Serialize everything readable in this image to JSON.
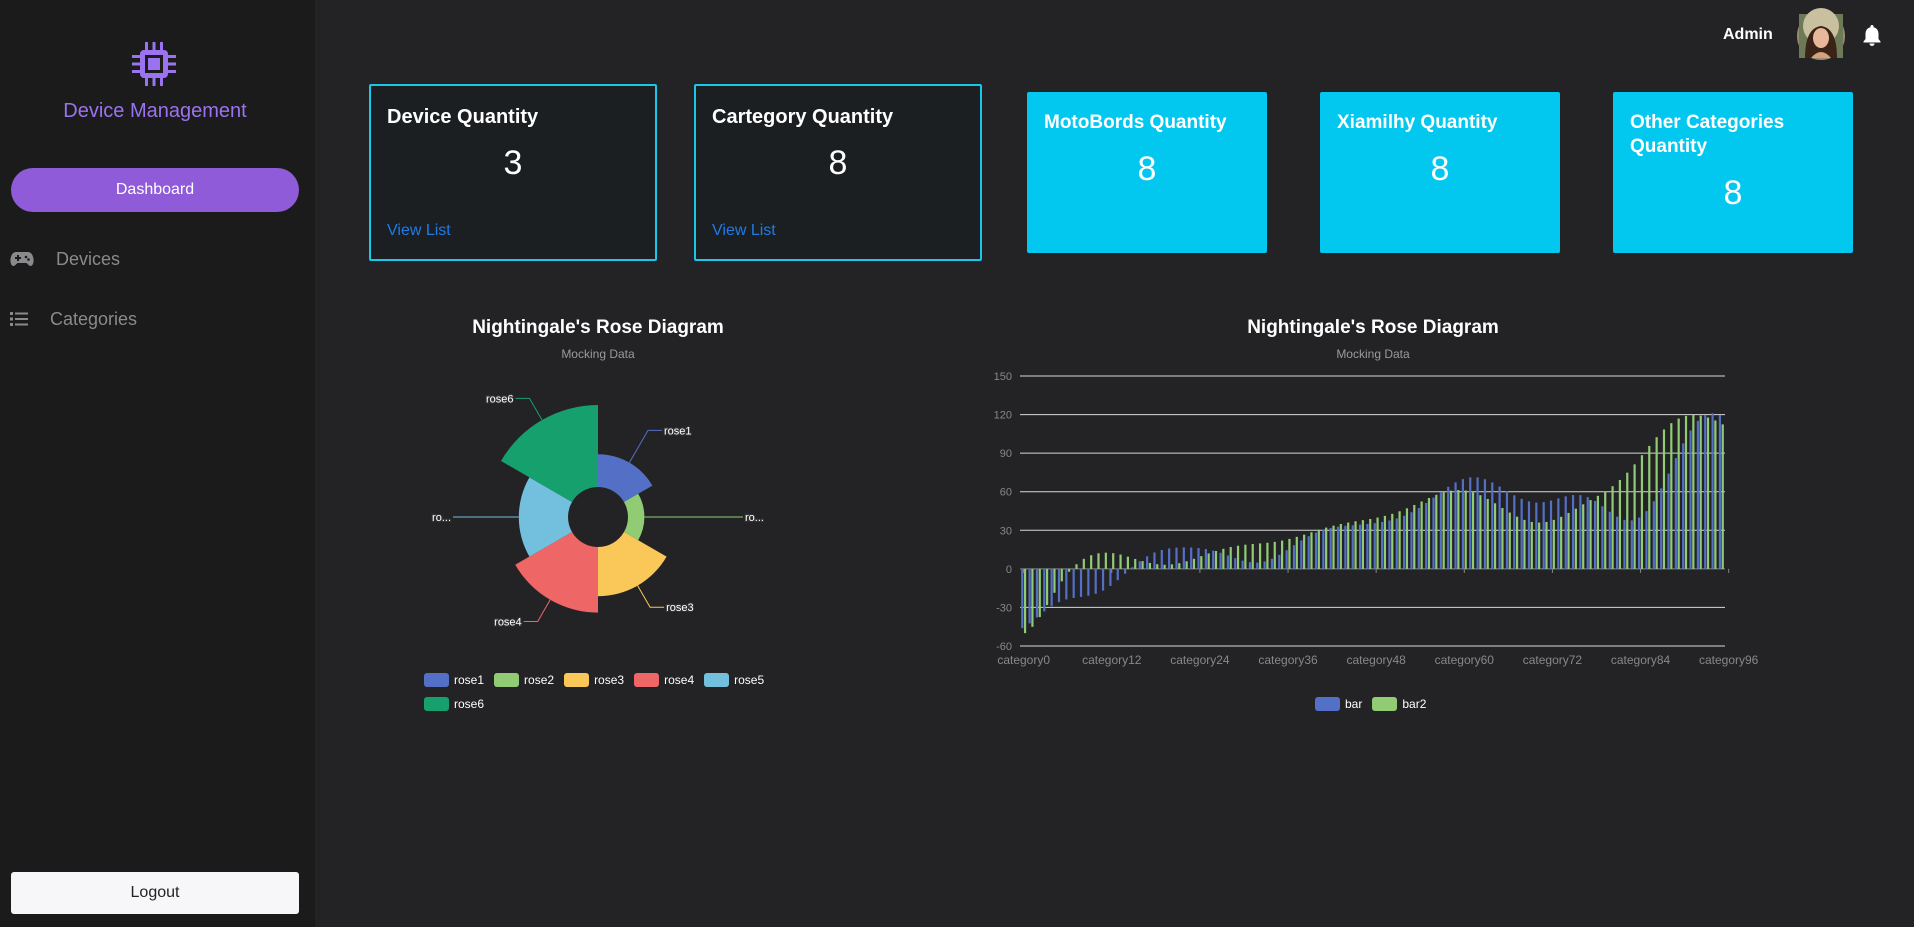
{
  "sidebar": {
    "brand_title": "Device Management",
    "brand_icon": "cpu-chip-icon",
    "dashboard_label": "Dashboard",
    "items": [
      {
        "label": "Devices",
        "icon": "gamepad-icon"
      },
      {
        "label": "Categories",
        "icon": "list-icon"
      }
    ],
    "logout_label": "Logout"
  },
  "topbar": {
    "user_name": "Admin",
    "bell_icon": "bell-icon"
  },
  "cards": [
    {
      "title": "Device Quantity",
      "value": "3",
      "link": "View List"
    },
    {
      "title": "Cartegory Quantity",
      "value": "8",
      "link": "View List"
    },
    {
      "title": "MotoBords Quantity",
      "value": "8"
    },
    {
      "title": "Xiamilhy Quantity",
      "value": "8"
    },
    {
      "title": "Other Categories Quantity",
      "value": "8"
    }
  ],
  "colors": {
    "accent": "#8f5bd9",
    "brand_text": "#9b73f0",
    "card_border": "#18c7ea",
    "card_solid": "#02c8ef",
    "link": "#1e7be8"
  },
  "chart_data": [
    {
      "type": "pie",
      "subtype": "rose",
      "title": "Nightingale's Rose Diagram",
      "subtitle": "Mocking Data",
      "categories": [
        "rose1",
        "rose2",
        "rose3",
        "rose4",
        "rose5",
        "rose6"
      ],
      "slice_labels": [
        "rose1",
        "ro...",
        "rose3",
        "rose4",
        "ro...",
        "rose6"
      ],
      "values": [
        20,
        10,
        30,
        40,
        30,
        50
      ],
      "colors": [
        "#5470c6",
        "#91cc75",
        "#fac858",
        "#ee6666",
        "#73c0de",
        "#15a06e"
      ],
      "legend_position": "bottom"
    },
    {
      "type": "bar",
      "title": "Nightingale's Rose Diagram",
      "subtitle": "Mocking Data",
      "x_tick_labels": [
        "category0",
        "category12",
        "category24",
        "category36",
        "category48",
        "category60",
        "category72",
        "category84",
        "category96"
      ],
      "ylim": [
        -60,
        150
      ],
      "y_ticks": [
        -60,
        -30,
        0,
        30,
        60,
        90,
        120,
        150
      ],
      "grid": true,
      "legend_position": "bottom",
      "series": [
        {
          "name": "bar",
          "color": "#5470c6",
          "values": [
            -46.1,
            -42.4,
            -37.8,
            -33.1,
            -29.0,
            -25.9,
            -23.8,
            -22.6,
            -21.8,
            -20.9,
            -19.4,
            -16.9,
            -13.3,
            -8.8,
            -3.8,
            1.3,
            5.9,
            9.8,
            12.7,
            14.7,
            15.9,
            16.5,
            16.7,
            16.6,
            16.2,
            15.4,
            14.2,
            12.5,
            10.4,
            8.3,
            6.4,
            5.2,
            4.9,
            5.8,
            7.8,
            10.9,
            14.5,
            18.4,
            22.1,
            25.4,
            28.2,
            30.3,
            31.8,
            32.8,
            33.5,
            33.9,
            34.4,
            34.9,
            35.6,
            36.5,
            37.6,
            39.2,
            41.3,
            44.0,
            47.3,
            51.2,
            55.4,
            59.7,
            63.8,
            67.3,
            69.8,
            71.1,
            71.1,
            69.7,
            67.2,
            64.0,
            60.5,
            57.2,
            54.4,
            52.5,
            51.6,
            51.9,
            53.1,
            54.8,
            56.4,
            57.4,
            57.3,
            55.8,
            52.8,
            48.7,
            44.4,
            40.6,
            38.1,
            37.7,
            39.9,
            44.9,
            52.6,
            62.6,
            74.1,
            86.1,
            97.6,
            107.6,
            115.1,
            119.6,
            121.0,
            119.6
          ]
        },
        {
          "name": "bar2",
          "color": "#91cc75",
          "values": [
            -50.0,
            -45.1,
            -37.5,
            -28.2,
            -18.6,
            -9.7,
            -2.2,
            3.6,
            7.8,
            10.6,
            12.1,
            12.6,
            12.2,
            11.1,
            9.5,
            7.7,
            6.0,
            4.6,
            3.6,
            3.2,
            3.5,
            4.4,
            5.9,
            7.8,
            9.9,
            12.0,
            13.9,
            15.6,
            17.0,
            18.0,
            18.8,
            19.3,
            19.8,
            20.3,
            21.0,
            22.0,
            23.3,
            24.9,
            26.6,
            28.5,
            30.4,
            32.1,
            33.6,
            34.9,
            36.0,
            37.0,
            37.9,
            38.8,
            39.9,
            41.2,
            42.8,
            44.8,
            47.1,
            49.7,
            52.4,
            55.1,
            57.6,
            59.5,
            60.8,
            61.3,
            60.9,
            59.5,
            57.3,
            54.4,
            51.0,
            47.3,
            43.8,
            40.6,
            38.1,
            36.5,
            36.0,
            36.5,
            38.1,
            40.5,
            43.5,
            46.8,
            50.2,
            53.5,
            56.8,
            60.3,
            64.3,
            69.1,
            74.8,
            81.3,
            88.4,
            95.6,
            102.4,
            108.4,
            113.3,
            116.9,
            119.0,
            119.7,
            119.2,
            117.7,
            115.4,
            112.4
          ]
        }
      ]
    }
  ]
}
